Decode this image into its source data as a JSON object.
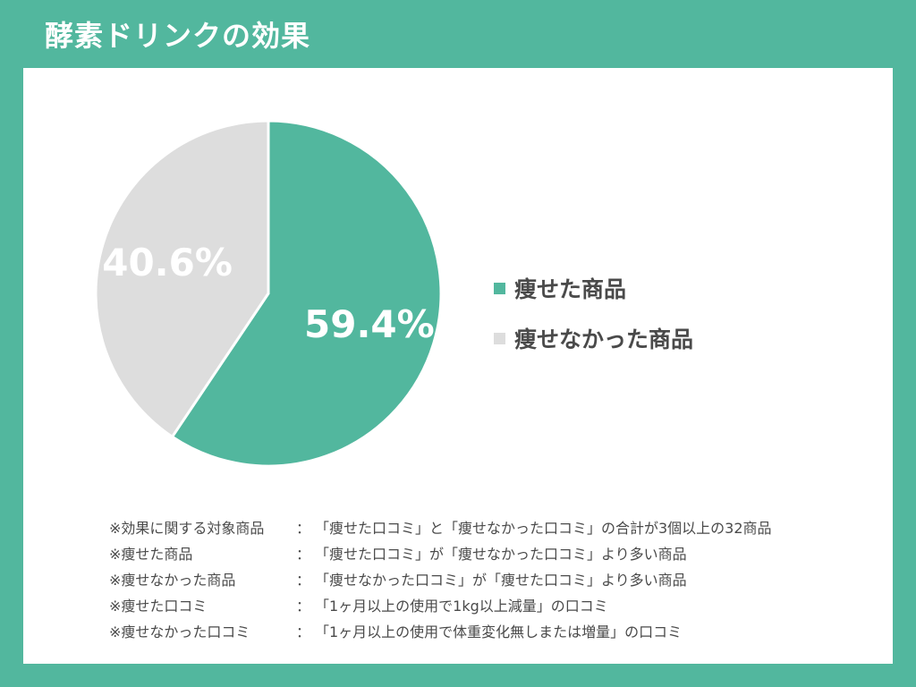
{
  "header": {
    "title": "酵素ドリンクの効果"
  },
  "colors": {
    "background": "#52b79e",
    "panel": "#ffffff",
    "slimmed": "#52b79e",
    "not_slimmed": "#dddddd",
    "label": "#ffffff"
  },
  "chart_data": {
    "type": "pie",
    "title": "",
    "slices": [
      {
        "label": "痩せた商品",
        "value": 59.4,
        "display": "59.4%",
        "color": "#52b79e"
      },
      {
        "label": "痩せなかった商品",
        "value": 40.6,
        "display": "40.6%",
        "color": "#dddddd"
      }
    ],
    "start_angle_deg": 0,
    "direction": "clockwise",
    "legend_position": "right"
  },
  "notes": [
    {
      "term": "※効果に関する対象商品",
      "colon": "：",
      "desc": "「痩せた口コミ」と「痩せなかった口コミ」の合計が3個以上の32商品"
    },
    {
      "term": "※痩せた商品",
      "colon": "：",
      "desc": "「痩せた口コミ」が「痩せなかった口コミ」より多い商品"
    },
    {
      "term": "※痩せなかった商品",
      "colon": "：",
      "desc": "「痩せなかった口コミ」が「痩せた口コミ」より多い商品"
    },
    {
      "term": "※痩せた口コミ",
      "colon": "：",
      "desc": "「1ヶ月以上の使用で1kg以上減量」の口コミ"
    },
    {
      "term": "※痩せなかった口コミ",
      "colon": "：",
      "desc": "「1ヶ月以上の使用で体重変化無しまたは増量」の口コミ"
    }
  ]
}
